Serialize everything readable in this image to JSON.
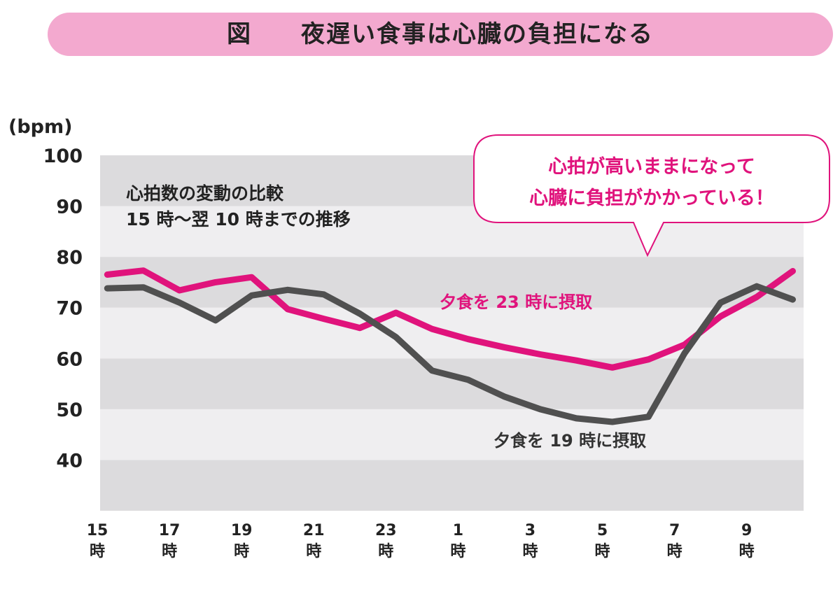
{
  "title": {
    "label": "図",
    "text": "夜遅い食事は心臓の負担になる"
  },
  "chart_data": {
    "type": "line",
    "ylabel": "(bpm)",
    "ylim": [
      30,
      100
    ],
    "yticks": [
      40,
      50,
      60,
      70,
      80,
      90,
      100
    ],
    "x_tick_labels": [
      {
        "num": "15",
        "unit": "時"
      },
      {
        "num": "17",
        "unit": "時"
      },
      {
        "num": "19",
        "unit": "時"
      },
      {
        "num": "21",
        "unit": "時"
      },
      {
        "num": "23",
        "unit": "時"
      },
      {
        "num": "1",
        "unit": "時"
      },
      {
        "num": "3",
        "unit": "時"
      },
      {
        "num": "5",
        "unit": "時"
      },
      {
        "num": "7",
        "unit": "時"
      },
      {
        "num": "9",
        "unit": "時"
      }
    ],
    "grid": "alternating horizontal bands",
    "annotation_lines": [
      "心拍数の変動の比較",
      "15 時～翌 10 時までの推移"
    ],
    "callout_lines": [
      "心拍が高いままになって",
      "心臓に負担がかかっている！"
    ],
    "series": [
      {
        "name": "夕食を 23 時に摂取",
        "color": "#e0137c",
        "x": [
          15.2,
          16.2,
          17.2,
          18.2,
          19.2,
          20.2,
          21.2,
          22.2,
          23.2,
          24.2,
          25.2,
          26.2,
          27.2,
          28.2,
          29.2,
          30.2,
          31.2,
          32.2,
          33.2,
          34.2
        ],
        "values": [
          76.5,
          77.3,
          73.4,
          75,
          76,
          69.7,
          67.8,
          66,
          69,
          65.8,
          63.8,
          62.2,
          60.8,
          59.6,
          58.2,
          59.8,
          62.7,
          68.3,
          72.1,
          77.2
        ]
      },
      {
        "name": "夕食を 19 時に摂取",
        "color": "#505050",
        "x": [
          15.2,
          16.2,
          17.2,
          18.2,
          19.2,
          20.2,
          21.2,
          22.2,
          23.2,
          24.2,
          25.2,
          26.2,
          27.2,
          28.2,
          29.2,
          30.2,
          31.2,
          32.2,
          33.2,
          34.2
        ],
        "values": [
          73.8,
          74.0,
          71.0,
          67.5,
          72.4,
          73.5,
          72.6,
          68.8,
          64.2,
          57.6,
          55.8,
          52.5,
          50.0,
          48.2,
          47.5,
          48.5,
          61.0,
          71.0,
          74.2,
          71.6
        ]
      }
    ]
  }
}
